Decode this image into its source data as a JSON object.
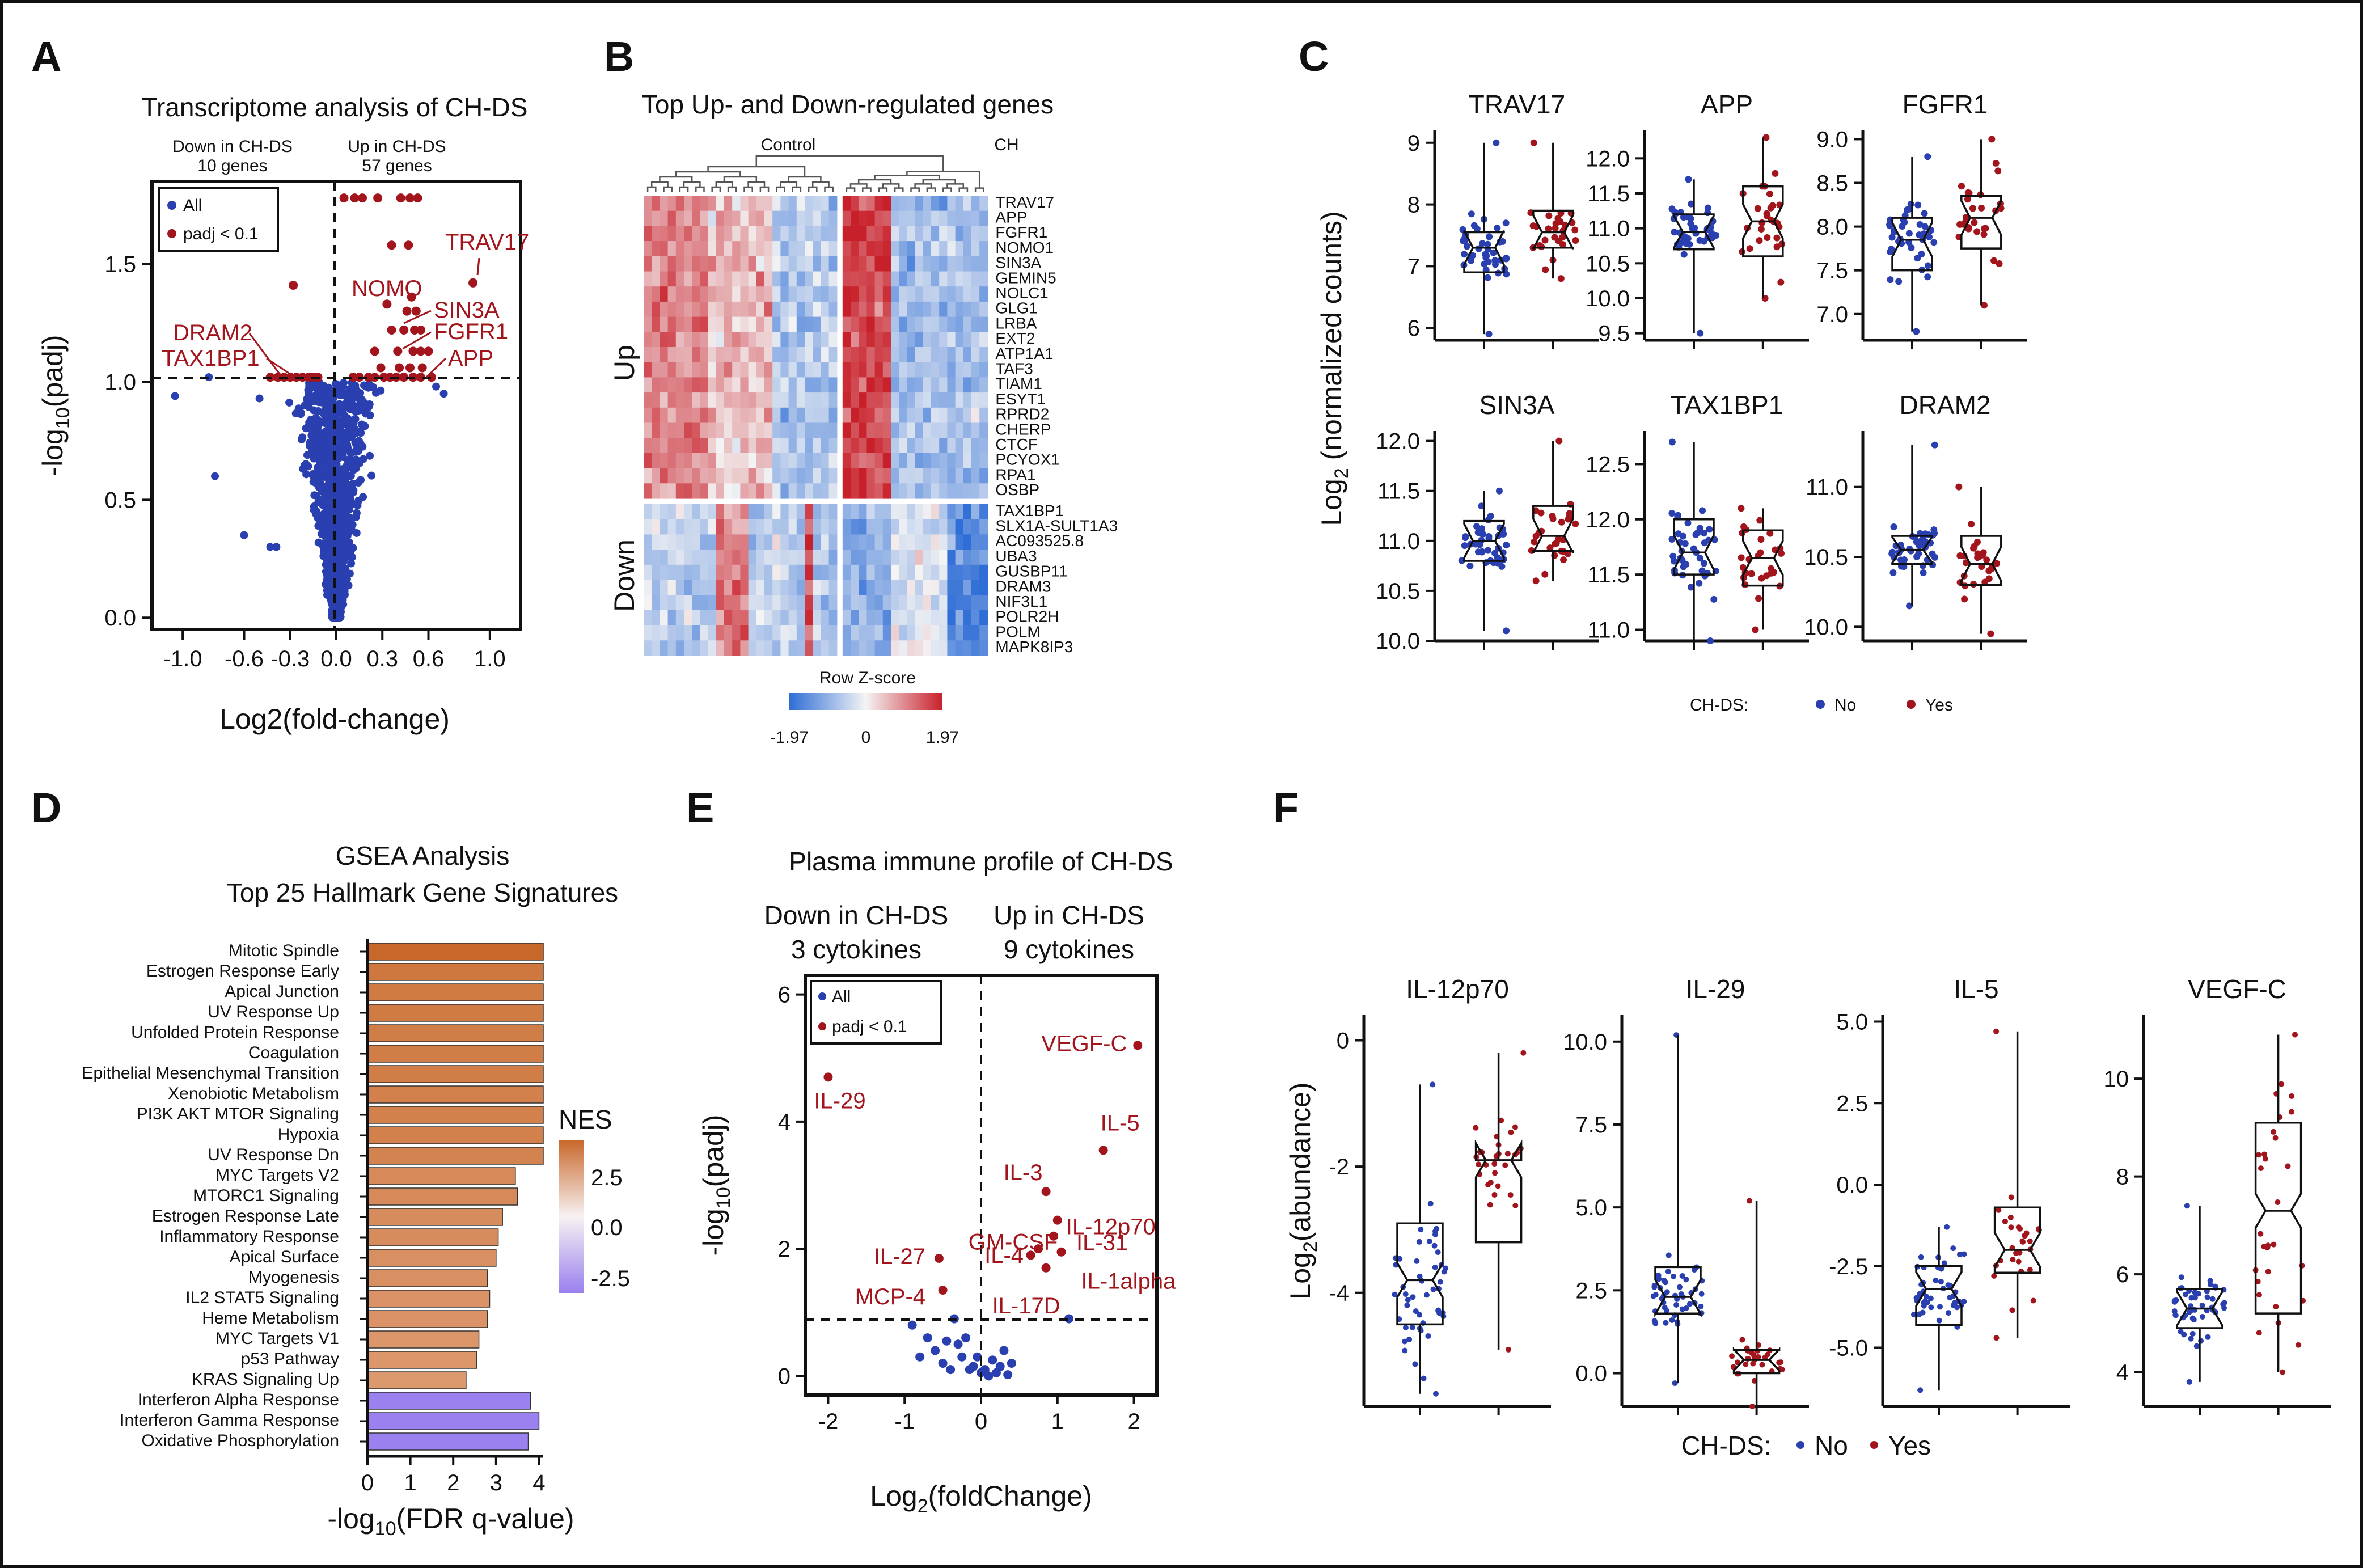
{
  "panels": {
    "A": "A",
    "B": "B",
    "C": "C",
    "D": "D",
    "E": "E",
    "F": "F"
  },
  "colors": {
    "all": "#2a3fb0",
    "sig": "#a3151c",
    "heat_hi": "#c8202a",
    "heat_lo": "#2f6ed6",
    "gsea_pos": "#c8672a",
    "gsea_neg": "#9b80ef"
  },
  "panelA": {
    "title": "Transcriptome analysis of CH-DS",
    "down_label": "Down in CH-DS",
    "down_count": "10 genes",
    "up_label": "Up in CH-DS",
    "up_count": "57 genes",
    "legend": {
      "all": "All",
      "sig": "padj < 0.1"
    },
    "ylabel_main": "-log",
    "ylabel_sub": "10",
    "ylabel_tail": "(padj)",
    "xlabel": "Log2(fold-change)",
    "gene_labels": [
      "NOMO",
      "TRAV17",
      "SIN3A",
      "FGFR1",
      "APP",
      "DRAM2",
      "TAX1BP1"
    ]
  },
  "panelB": {
    "title": "Top Up- and Down-regulated genes",
    "col_groups": [
      "Control",
      "CH"
    ],
    "row_groups": [
      "Up",
      "Down"
    ],
    "up_genes": [
      "TRAV17",
      "APP",
      "FGFR1",
      "NOMO1",
      "SIN3A",
      "GEMIN5",
      "NOLC1",
      "GLG1",
      "LRBA",
      "EXT2",
      "ATP1A1",
      "TAF3",
      "TIAM1",
      "ESYT1",
      "RPRD2",
      "CHERP",
      "CTCF",
      "PCYOX1",
      "RPA1",
      "OSBP"
    ],
    "down_genes": [
      "TAX1BP1",
      "SLX1A-SULT1A3",
      "AC093525.8",
      "UBA3",
      "GUSBP11",
      "DRAM3",
      "NIF3L1",
      "POLR2H",
      "POLM",
      "MAPK8IP3"
    ],
    "scale_title": "Row Z-score",
    "scale_ticks": [
      "-1.97",
      "0",
      "1.97"
    ]
  },
  "panelC": {
    "ylabel": "Log",
    "ylabel_sub": "2",
    "ylabel_tail": " (normalized counts)",
    "legend_title": "CH-DS:",
    "legend_no": "No",
    "legend_yes": "Yes",
    "subplots": [
      {
        "name": "TRAV17",
        "ticks": [
          "6",
          "7",
          "8",
          "9"
        ]
      },
      {
        "name": "APP",
        "ticks": [
          "9.5",
          "10.0",
          "10.5",
          "11.0",
          "11.5",
          "12.0"
        ]
      },
      {
        "name": "FGFR1",
        "ticks": [
          "7.0",
          "7.5",
          "8.0",
          "8.5",
          "9.0"
        ]
      },
      {
        "name": "SIN3A",
        "ticks": [
          "10.0",
          "10.5",
          "11.0",
          "11.5",
          "12.0"
        ]
      },
      {
        "name": "TAX1BP1",
        "ticks": [
          "11.0",
          "11.5",
          "12.0",
          "12.5"
        ]
      },
      {
        "name": "DRAM2",
        "ticks": [
          "10.0",
          "10.5",
          "11.0"
        ]
      }
    ]
  },
  "panelD": {
    "title1": "GSEA Analysis",
    "title2": "Top 25 Hallmark Gene Signatures",
    "xlabel_main": "-log",
    "xlabel_sub": "10",
    "xlabel_tail": "(FDR q-value)",
    "xticks": [
      "0",
      "1",
      "2",
      "3",
      "4"
    ],
    "nes_title": "NES",
    "nes_ticks": [
      "2.5",
      "0.0",
      "-2.5"
    ]
  },
  "panelE": {
    "title": "Plasma immune profile of CH-DS",
    "down_label": "Down in CH-DS",
    "down_count": "3 cytokines",
    "up_label": "Up in CH-DS",
    "up_count": "9 cytokines",
    "legend": {
      "all": "All",
      "sig": "padj < 0.1"
    },
    "ylabel_main": "-log",
    "ylabel_sub": "10",
    "ylabel_tail": "(padj)",
    "xlabel_main": "Log",
    "xlabel_sub": "2",
    "xlabel_tail": "(foldChange)",
    "xticks": [
      "-2",
      "-1",
      "0",
      "1",
      "2"
    ],
    "yticks": [
      "0",
      "2",
      "4",
      "6"
    ]
  },
  "panelF": {
    "ylabel": "Log",
    "ylabel_sub": "2",
    "ylabel_tail": "(abundance)",
    "legend_title": "CH-DS:",
    "legend_no": "No",
    "legend_yes": "Yes",
    "subplots": [
      {
        "name": "IL-12p70",
        "ticks": [
          "-4",
          "-2",
          "0"
        ]
      },
      {
        "name": "IL-29",
        "ticks": [
          "0.0",
          "2.5",
          "5.0",
          "7.5",
          "10.0"
        ]
      },
      {
        "name": "IL-5",
        "ticks": [
          "-5.0",
          "-2.5",
          "0.0",
          "2.5",
          "5.0"
        ]
      },
      {
        "name": "VEGF-C",
        "ticks": [
          "4",
          "6",
          "8",
          "10"
        ]
      }
    ]
  },
  "chart_data": [
    {
      "panel": "A",
      "type": "scatter",
      "title": "Transcriptome analysis of CH-DS",
      "xlabel": "Log2(fold-change)",
      "ylabel": "-log10(padj)",
      "xlim": [
        -1.2,
        1.2
      ],
      "ylim": [
        -0.05,
        1.85
      ],
      "xticks": [
        -1.0,
        -0.6,
        -0.3,
        0.0,
        0.3,
        0.6,
        1.0
      ],
      "yticks": [
        0.0,
        0.5,
        1.0,
        1.5
      ],
      "thresholds": {
        "y": 1.0,
        "x": 0.0
      },
      "series": [
        {
          "name": "padj < 0.1",
          "points": [
            {
              "x": 0.05,
              "y": 1.78
            },
            {
              "x": 0.12,
              "y": 1.78
            },
            {
              "x": 0.17,
              "y": 1.78
            },
            {
              "x": 0.27,
              "y": 1.78
            },
            {
              "x": 0.42,
              "y": 1.78
            },
            {
              "x": 0.48,
              "y": 1.78
            },
            {
              "x": 0.53,
              "y": 1.78
            },
            {
              "x": 0.36,
              "y": 1.58
            },
            {
              "x": 0.47,
              "y": 1.58
            },
            {
              "x": 0.89,
              "y": 1.42
            },
            {
              "x": 0.49,
              "y": 1.36
            },
            {
              "x": 0.33,
              "y": 1.33
            },
            {
              "x": 0.46,
              "y": 1.3
            },
            {
              "x": 0.52,
              "y": 1.3
            },
            {
              "x": 0.36,
              "y": 1.22
            },
            {
              "x": 0.44,
              "y": 1.22
            },
            {
              "x": 0.51,
              "y": 1.22
            },
            {
              "x": 0.55,
              "y": 1.22
            },
            {
              "x": 0.25,
              "y": 1.13
            },
            {
              "x": 0.4,
              "y": 1.13
            },
            {
              "x": 0.5,
              "y": 1.13
            },
            {
              "x": 0.55,
              "y": 1.13
            },
            {
              "x": 0.6,
              "y": 1.13
            },
            {
              "x": 0.29,
              "y": 1.06
            },
            {
              "x": 0.41,
              "y": 1.06
            },
            {
              "x": 0.48,
              "y": 1.06
            },
            {
              "x": 0.56,
              "y": 1.06
            },
            {
              "x": 0.11,
              "y": 1.02
            },
            {
              "x": 0.15,
              "y": 1.02
            },
            {
              "x": 0.21,
              "y": 1.02
            },
            {
              "x": 0.25,
              "y": 1.02
            },
            {
              "x": 0.31,
              "y": 1.02
            },
            {
              "x": 0.35,
              "y": 1.02
            },
            {
              "x": 0.39,
              "y": 1.02
            },
            {
              "x": 0.44,
              "y": 1.02
            },
            {
              "x": 0.5,
              "y": 1.02
            },
            {
              "x": 0.55,
              "y": 1.02
            },
            {
              "x": 0.62,
              "y": 1.02
            },
            {
              "x": -0.28,
              "y": 1.41
            },
            {
              "x": -0.43,
              "y": 1.02
            },
            {
              "x": -0.38,
              "y": 1.02
            },
            {
              "x": -0.34,
              "y": 1.02
            },
            {
              "x": -0.3,
              "y": 1.02
            },
            {
              "x": -0.26,
              "y": 1.02
            },
            {
              "x": -0.22,
              "y": 1.02
            },
            {
              "x": -0.18,
              "y": 1.02
            },
            {
              "x": -0.15,
              "y": 1.02
            },
            {
              "x": -0.12,
              "y": 1.02
            }
          ]
        },
        {
          "name": "All",
          "generated": "dense cloud |x|<=0.65, y<=1.0, plus scattered points at x -1.05,-0.83,-0.79,-0.6,-0.43,-0.39"
        }
      ]
    },
    {
      "panel": "B",
      "type": "heatmap",
      "title": "Top Up- and Down-regulated genes",
      "columns": {
        "Control": 24,
        "CH": 18
      },
      "rows": 30,
      "scale": [
        -1.97,
        0,
        1.97
      ],
      "pattern": "Up genes: Control mostly red, CH left block dark red; Down genes: reversed with blue/red mix"
    },
    {
      "panel": "C",
      "type": "box",
      "groups": [
        "No",
        "Yes"
      ],
      "ylabel": "Log2 (normalized counts)",
      "subplots": [
        {
          "name": "TRAV17",
          "ylim": [
            5.8,
            9.2
          ],
          "No": {
            "q1": 6.9,
            "median": 7.3,
            "q3": 7.55,
            "min": 5.9,
            "max": 9.0
          },
          "Yes": {
            "q1": 7.3,
            "median": 7.55,
            "q3": 7.9,
            "min": 6.8,
            "max": 9.0
          }
        },
        {
          "name": "APP",
          "ylim": [
            9.4,
            12.4
          ],
          "No": {
            "q1": 10.7,
            "median": 10.95,
            "q3": 11.2,
            "min": 9.5,
            "max": 11.7
          },
          "Yes": {
            "q1": 10.6,
            "median": 11.1,
            "q3": 11.6,
            "min": 10.0,
            "max": 12.3
          }
        },
        {
          "name": "FGFR1",
          "ylim": [
            6.7,
            9.1
          ],
          "No": {
            "q1": 7.5,
            "median": 7.85,
            "q3": 8.1,
            "min": 6.8,
            "max": 8.8
          },
          "Yes": {
            "q1": 7.75,
            "median": 8.1,
            "q3": 8.35,
            "min": 7.1,
            "max": 9.0
          }
        },
        {
          "name": "SIN3A",
          "ylim": [
            10.0,
            12.1
          ],
          "No": {
            "q1": 10.8,
            "median": 11.0,
            "q3": 11.2,
            "min": 10.1,
            "max": 11.5
          },
          "Yes": {
            "q1": 10.9,
            "median": 11.05,
            "q3": 11.35,
            "min": 10.6,
            "max": 12.0
          }
        },
        {
          "name": "TAX1BP1",
          "ylim": [
            10.9,
            12.8
          ],
          "No": {
            "q1": 11.5,
            "median": 11.7,
            "q3": 12.0,
            "min": 10.9,
            "max": 12.7
          },
          "Yes": {
            "q1": 11.4,
            "median": 11.65,
            "q3": 11.9,
            "min": 11.0,
            "max": 12.1
          }
        },
        {
          "name": "DRAM2",
          "ylim": [
            9.9,
            11.4
          ],
          "No": {
            "q1": 10.45,
            "median": 10.55,
            "q3": 10.65,
            "min": 10.15,
            "max": 11.3
          },
          "Yes": {
            "q1": 10.3,
            "median": 10.45,
            "q3": 10.65,
            "min": 9.95,
            "max": 11.0
          }
        }
      ]
    },
    {
      "panel": "D",
      "type": "bar",
      "title": "GSEA Analysis Top 25 Hallmark Gene Signatures",
      "xlabel": "-log10(FDR q-value)",
      "xlim": [
        0,
        4.2
      ],
      "categories": [
        "Mitotic Spindle",
        "Estrogen Response Early",
        "Apical Junction",
        "UV Response Up",
        "Unfolded Protein Response",
        "Coagulation",
        "Epithelial Mesenchymal Transition",
        "Xenobiotic Metabolism",
        "PI3K AKT MTOR Signaling",
        "Hypoxia",
        "UV Response Dn",
        "MYC Targets V2",
        "MTORC1 Signaling",
        "Estrogen Response Late",
        "Inflammatory Response",
        "Apical Surface",
        "Myogenesis",
        "IL2 STAT5 Signaling",
        "Heme Metabolism",
        "MYC Targets V1",
        "p53 Pathway",
        "KRAS Signaling Up",
        "Interferon Alpha Response",
        "Interferon Gamma Response",
        "Oxidative Phosphorylation"
      ],
      "values": [
        4.1,
        4.1,
        4.1,
        4.1,
        4.1,
        4.1,
        4.1,
        4.1,
        4.1,
        4.1,
        4.1,
        3.45,
        3.5,
        3.15,
        3.05,
        3.0,
        2.8,
        2.85,
        2.8,
        2.6,
        2.55,
        2.3,
        3.8,
        4.0,
        3.75
      ],
      "nes": [
        3.0,
        2.5,
        2.4,
        2.4,
        2.3,
        2.3,
        2.3,
        2.2,
        2.2,
        2.2,
        2.1,
        1.9,
        1.9,
        1.8,
        1.8,
        1.7,
        1.7,
        1.6,
        1.6,
        1.5,
        1.5,
        1.4,
        -2.6,
        -2.7,
        -2.6
      ]
    },
    {
      "panel": "E",
      "type": "scatter",
      "title": "Plasma immune profile of CH-DS",
      "xlabel": "Log2(foldChange)",
      "ylabel": "-log10(padj)",
      "xlim": [
        -2.3,
        2.3
      ],
      "ylim": [
        -0.3,
        6.3
      ],
      "thresholds": {
        "y": 1.0,
        "x": 0.0
      },
      "series": [
        {
          "name": "padj < 0.1",
          "points": [
            {
              "label": "VEGF-C",
              "x": 2.05,
              "y": 5.2
            },
            {
              "label": "IL-29",
              "x": -2.0,
              "y": 4.7
            },
            {
              "label": "IL-5",
              "x": 1.6,
              "y": 3.55
            },
            {
              "label": "IL-3",
              "x": 0.85,
              "y": 2.9
            },
            {
              "label": "IL-12p70",
              "x": 1.0,
              "y": 2.45
            },
            {
              "label": "IL-31",
              "x": 0.95,
              "y": 2.2
            },
            {
              "label": "GM-CSF",
              "x": 0.65,
              "y": 1.9
            },
            {
              "label": "IL-4",
              "x": 0.75,
              "y": 2.0
            },
            {
              "label": "IL-1alpha",
              "x": 1.05,
              "y": 1.95
            },
            {
              "label": "IL-17D",
              "x": 0.85,
              "y": 1.7
            },
            {
              "label": "IL-27",
              "x": -0.55,
              "y": 1.85
            },
            {
              "label": "MCP-4",
              "x": -0.5,
              "y": 1.35
            }
          ]
        },
        {
          "name": "All",
          "points": [
            {
              "x": -0.9,
              "y": 0.8
            },
            {
              "x": -0.7,
              "y": 0.6
            },
            {
              "x": -0.35,
              "y": 0.9
            },
            {
              "x": -0.3,
              "y": 0.5
            },
            {
              "x": -0.25,
              "y": 0.3
            },
            {
              "x": -0.5,
              "y": 0.2
            },
            {
              "x": -0.6,
              "y": 0.4
            },
            {
              "x": -0.2,
              "y": 0.6
            },
            {
              "x": -0.1,
              "y": 0.15
            },
            {
              "x": 0.0,
              "y": 0.05
            },
            {
              "x": 0.05,
              "y": 0.1
            },
            {
              "x": 0.1,
              "y": 0.0
            },
            {
              "x": 0.2,
              "y": 0.05
            },
            {
              "x": 0.25,
              "y": 0.15
            },
            {
              "x": 0.3,
              "y": 0.4
            },
            {
              "x": 0.4,
              "y": 0.2
            },
            {
              "x": -0.05,
              "y": 0.3
            },
            {
              "x": -0.15,
              "y": 0.1
            },
            {
              "x": 1.15,
              "y": 0.9
            },
            {
              "x": -0.4,
              "y": 0.1
            },
            {
              "x": -0.8,
              "y": 0.3
            },
            {
              "x": 0.15,
              "y": 0.25
            },
            {
              "x": -0.45,
              "y": 0.55
            },
            {
              "x": 0.35,
              "y": 0.02
            }
          ]
        }
      ]
    },
    {
      "panel": "F",
      "type": "box",
      "groups": [
        "No",
        "Yes"
      ],
      "ylabel": "Log2(abundance)",
      "subplots": [
        {
          "name": "IL-12p70",
          "ylim": [
            -5.8,
            0.4
          ],
          "No": {
            "q1": -4.5,
            "median": -3.8,
            "q3": -2.9,
            "min": -5.6,
            "max": -0.7
          },
          "Yes": {
            "q1": -3.2,
            "median": -1.9,
            "q3": -1.9,
            "min": -4.9,
            "max": -0.2
          }
        },
        {
          "name": "IL-29",
          "ylim": [
            -1.0,
            10.8
          ],
          "No": {
            "q1": 1.8,
            "median": 2.3,
            "q3": 3.2,
            "min": -0.3,
            "max": 10.2
          },
          "Yes": {
            "q1": 0.0,
            "median": 0.4,
            "q3": 0.7,
            "min": -1.0,
            "max": 5.2
          }
        },
        {
          "name": "IL-5",
          "ylim": [
            -6.8,
            5.2
          ],
          "No": {
            "q1": -4.3,
            "median": -3.2,
            "q3": -2.5,
            "min": -6.3,
            "max": -1.3
          },
          "Yes": {
            "q1": -2.7,
            "median": -2.0,
            "q3": -0.7,
            "min": -4.7,
            "max": 4.7
          }
        },
        {
          "name": "VEGF-C",
          "ylim": [
            3.3,
            11.3
          ],
          "No": {
            "q1": 4.9,
            "median": 5.3,
            "q3": 5.7,
            "min": 3.8,
            "max": 7.4
          },
          "Yes": {
            "q1": 5.2,
            "median": 7.3,
            "q3": 9.1,
            "min": 4.0,
            "max": 10.9
          }
        }
      ]
    }
  ]
}
